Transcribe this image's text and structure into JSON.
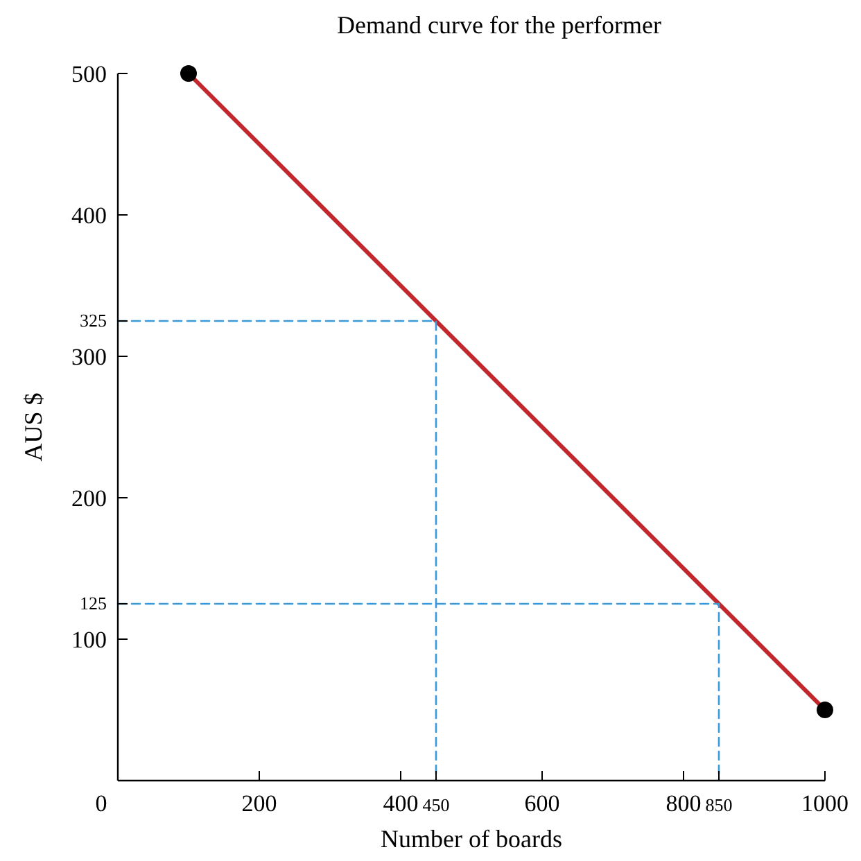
{
  "chart_data": {
    "type": "line",
    "title": "Demand curve for the performer",
    "xlabel": "Number of boards",
    "ylabel": "AUS $",
    "xlim": [
      0,
      1000
    ],
    "ylim": [
      0,
      500
    ],
    "xticks": [
      0,
      200,
      400,
      450,
      600,
      800,
      850,
      1000
    ],
    "yticks": [
      100,
      125,
      200,
      300,
      325,
      400,
      500
    ],
    "grid": false,
    "series": [
      {
        "color": "#c1272d",
        "x": [
          100,
          1000
        ],
        "values": [
          500,
          50
        ],
        "marker": "none",
        "line_style": "solid"
      },
      {
        "type": "scatter",
        "color": "#000000",
        "x": [
          100,
          1000
        ],
        "values": [
          500,
          50
        ],
        "marker": "circle"
      },
      {
        "color": "#3a9ad9",
        "x": [
          0,
          450,
          450
        ],
        "values": [
          325,
          325,
          0
        ],
        "marker": "none",
        "line_style": "dashed"
      },
      {
        "color": "#3a9ad9",
        "x": [
          0,
          850,
          850
        ],
        "values": [
          125,
          125,
          0
        ],
        "marker": "none",
        "line_style": "dashed"
      }
    ]
  }
}
